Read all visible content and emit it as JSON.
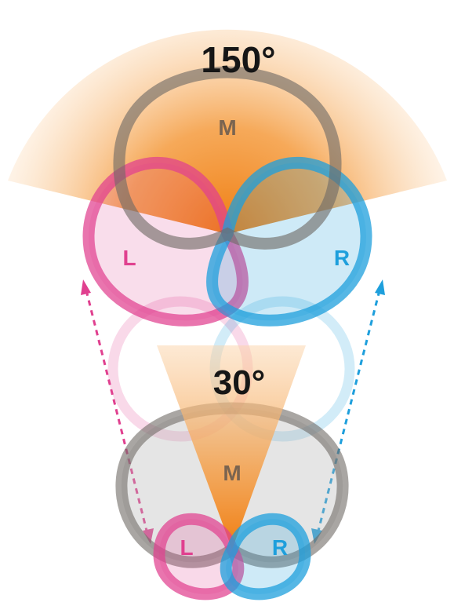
{
  "wide_config": {
    "angle_label": "150°",
    "mid_label": "M",
    "left_label": "L",
    "right_label": "R"
  },
  "narrow_config": {
    "angle_label": "30°",
    "mid_label": "M",
    "left_label": "L",
    "right_label": "R"
  },
  "colors": {
    "mid": "#6f6a66",
    "left": "#e0408f",
    "right": "#1e9fdc",
    "mid_overlap": "#2f7e6c",
    "orange": "#f08a1c"
  }
}
